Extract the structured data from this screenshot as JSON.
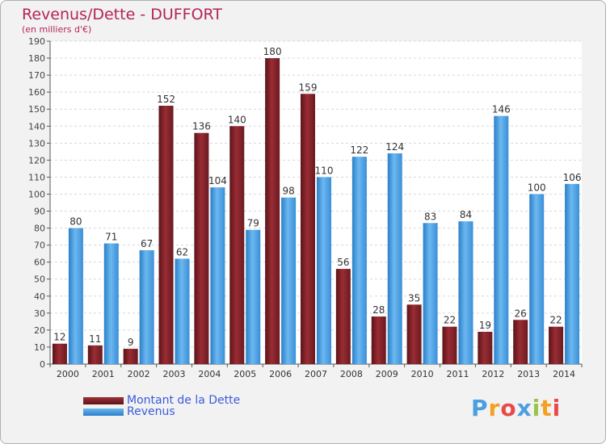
{
  "chart_data": {
    "type": "bar",
    "title": "Revenus/Dette - DUFFORT",
    "subtitle": "(en milliers d'€)",
    "categories": [
      "2000",
      "2001",
      "2002",
      "2003",
      "2004",
      "2005",
      "2006",
      "2007",
      "2008",
      "2009",
      "2010",
      "2011",
      "2012",
      "2013",
      "2014"
    ],
    "series": [
      {
        "name": "Montant de la Dette",
        "color": "#7a1e24",
        "values": [
          12,
          11,
          9,
          152,
          136,
          140,
          180,
          159,
          56,
          28,
          35,
          22,
          19,
          26,
          22
        ]
      },
      {
        "name": "Revenus",
        "color": "#4a9fe0",
        "values": [
          80,
          71,
          67,
          62,
          104,
          79,
          98,
          110,
          122,
          124,
          83,
          84,
          146,
          100,
          106
        ]
      }
    ],
    "ylim": [
      0,
      190
    ],
    "ytick_step": 10,
    "grid": true,
    "legend_position": "bottom-left"
  },
  "logo": {
    "letters": [
      "P",
      "r",
      "o",
      "x",
      "i",
      "t",
      "i"
    ],
    "colors": [
      "#4a9fe0",
      "#f4a020",
      "#e84a4a",
      "#4a9fe0",
      "#9bc34a",
      "#f4a020",
      "#e84a4a"
    ]
  }
}
